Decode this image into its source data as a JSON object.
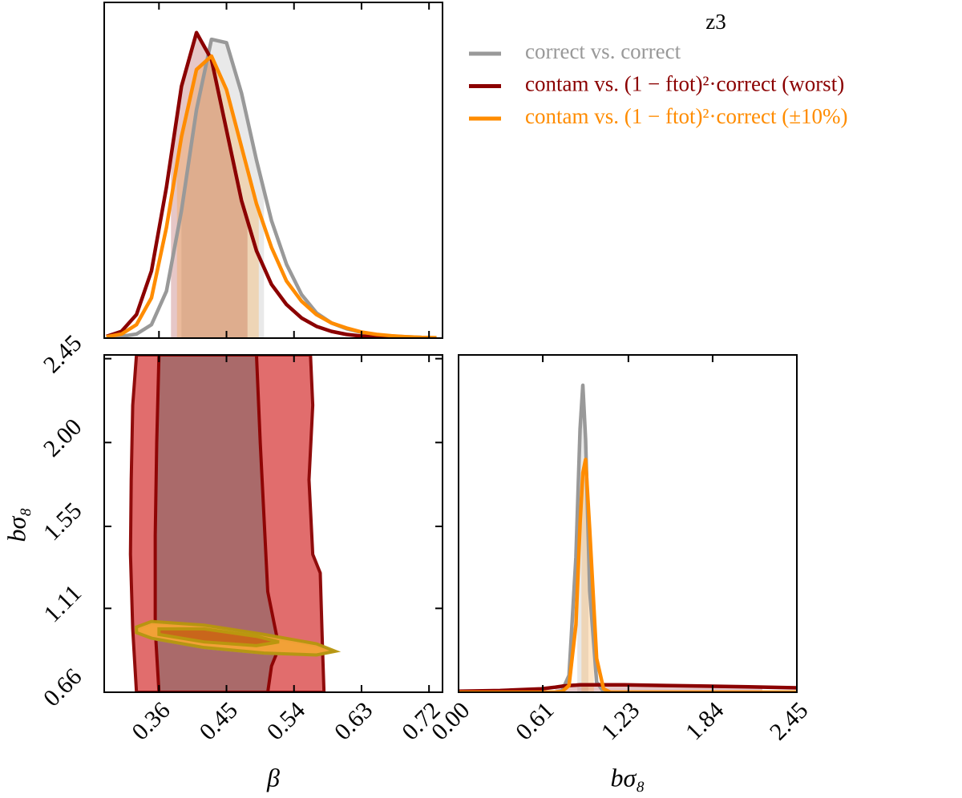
{
  "chart_data": [
    {
      "type": "line",
      "legend_title": "z3",
      "x": [
        0.29,
        0.31,
        0.33,
        0.35,
        0.37,
        0.39,
        0.41,
        0.43,
        0.45,
        0.47,
        0.49,
        0.51,
        0.53,
        0.55,
        0.57,
        0.59,
        0.61,
        0.63,
        0.65,
        0.67,
        0.69,
        0.71,
        0.73
      ],
      "series": [
        {
          "name": "correct vs. correct",
          "color": "#999999",
          "interval": [
            0.39,
            0.5
          ],
          "values": [
            0.003,
            0.005,
            0.012,
            0.04,
            0.14,
            0.38,
            0.68,
            0.89,
            0.88,
            0.73,
            0.53,
            0.35,
            0.22,
            0.13,
            0.075,
            0.045,
            0.028,
            0.017,
            0.01,
            0.006,
            0.004,
            0.002,
            0.001
          ]
        },
        {
          "name": "contam vs. (1 − ftot)²·correct (worst)",
          "color": "#8b0000",
          "interval": [
            0.376,
            0.478
          ],
          "values": [
            0.005,
            0.02,
            0.07,
            0.2,
            0.45,
            0.75,
            0.91,
            0.83,
            0.62,
            0.41,
            0.26,
            0.16,
            0.1,
            0.06,
            0.035,
            0.02,
            0.011,
            0.006,
            0.003,
            0.002,
            0.001,
            0,
            0
          ]
        },
        {
          "name": "contam vs. (1 − ftot)²·correct (±10%)",
          "color": "#ff8c00",
          "interval": [
            0.384,
            0.493
          ],
          "values": [
            0.004,
            0.012,
            0.04,
            0.12,
            0.33,
            0.6,
            0.8,
            0.84,
            0.74,
            0.57,
            0.4,
            0.27,
            0.17,
            0.11,
            0.07,
            0.045,
            0.03,
            0.018,
            0.011,
            0.007,
            0.004,
            0.002,
            0.001
          ]
        }
      ],
      "xlim": [
        0.287,
        0.738
      ],
      "xticks": [
        0.36,
        0.45,
        0.54,
        0.63,
        0.72
      ],
      "ylim": [
        0,
        1
      ]
    },
    {
      "type": "contour",
      "xlabel": "β",
      "ylabel": "bσ₈",
      "xlim": [
        0.287,
        0.738
      ],
      "xticks": [
        0.36,
        0.45,
        0.54,
        0.63,
        0.72
      ],
      "ylim": [
        0.66,
        2.47
      ],
      "yticks": [
        0.66,
        1.11,
        1.55,
        {
          "value": 2.0,
          "label": "2.00"
        },
        2.45
      ],
      "series": [
        {
          "color": "#8b0000",
          "fill_colors": [
            "#e06666",
            "#a86a6a"
          ],
          "contours": [
            {
              "x": [
                0.33,
                0.325,
                0.323,
                0.322,
                0.325,
                0.33,
                0.58,
                0.578,
                0.575,
                0.565,
                0.56,
                0.565,
                0.562
              ],
              "y": [
                2.47,
                2.2,
                1.8,
                1.4,
                1.0,
                0.66,
                0.66,
                0.9,
                1.3,
                1.4,
                1.8,
                2.2,
                2.47
              ]
            },
            {
              "x": [
                0.36,
                0.357,
                0.355,
                0.355,
                0.36,
                0.505,
                0.51,
                0.52,
                0.505,
                0.5,
                0.495,
                0.49
              ],
              "y": [
                2.47,
                2.0,
                1.5,
                1.0,
                0.66,
                0.66,
                0.8,
                0.9,
                1.2,
                1.6,
                2.0,
                2.47
              ]
            }
          ]
        },
        {
          "color": "#999999",
          "fill_colors": [
            "#c8c8c8",
            "#8c8c8c"
          ],
          "contours": [
            {
              "x": [
                0.332,
                0.35,
                0.42,
                0.5,
                0.57,
                0.59,
                0.57,
                0.5,
                0.42,
                0.35,
                0.332
              ],
              "y": [
                1.0,
                1.03,
                1.01,
                0.96,
                0.91,
                0.88,
                0.86,
                0.87,
                0.9,
                0.95,
                0.98
              ]
            },
            {
              "x": [
                0.365,
                0.42,
                0.49,
                0.515,
                0.49,
                0.42,
                0.365
              ],
              "y": [
                0.995,
                0.995,
                0.955,
                0.93,
                0.915,
                0.935,
                0.97
              ]
            }
          ]
        },
        {
          "color": "#b8960c",
          "fill_colors": [
            "#f5a030",
            "#c8641a"
          ],
          "contours": [
            {
              "x": [
                0.33,
                0.35,
                0.42,
                0.5,
                0.57,
                0.595,
                0.57,
                0.5,
                0.42,
                0.35,
                0.33
              ],
              "y": [
                1.01,
                1.04,
                1.02,
                0.97,
                0.92,
                0.88,
                0.86,
                0.87,
                0.9,
                0.95,
                0.98
              ]
            },
            {
              "x": [
                0.36,
                0.42,
                0.49,
                0.52,
                0.49,
                0.42,
                0.36
              ],
              "y": [
                1.0,
                1.0,
                0.96,
                0.93,
                0.91,
                0.93,
                0.97
              ]
            }
          ]
        }
      ]
    },
    {
      "type": "line",
      "xlabel": "bσ₈",
      "x": [
        0,
        0.3,
        0.6,
        0.7,
        0.75,
        0.8,
        0.85,
        0.88,
        0.9,
        0.92,
        0.95,
        1.0,
        1.05,
        1.1,
        1.2,
        1.5,
        1.8,
        2.1,
        2.45
      ],
      "series": [
        {
          "color": "#999999",
          "interval": [
            0.86,
            0.94
          ],
          "values": [
            0,
            0,
            0,
            0,
            0.005,
            0.05,
            0.4,
            0.78,
            0.91,
            0.75,
            0.3,
            0.03,
            0.002,
            0,
            0,
            0,
            0,
            0,
            0
          ]
        },
        {
          "color": "#8b0000",
          "interval": [
            0.7,
            2.2
          ],
          "values": [
            0.003,
            0.005,
            0.01,
            0.015,
            0.018,
            0.02,
            0.021,
            0.022,
            0.022,
            0.022,
            0.022,
            0.022,
            0.022,
            0.022,
            0.022,
            0.02,
            0.018,
            0.016,
            0.013
          ]
        },
        {
          "color": "#ff8c00",
          "interval": [
            0.89,
            0.98
          ],
          "values": [
            0,
            0,
            0,
            0,
            0.002,
            0.02,
            0.2,
            0.5,
            0.65,
            0.69,
            0.48,
            0.1,
            0.01,
            0,
            0,
            0,
            0,
            0,
            0
          ]
        }
      ],
      "xlim": [
        0,
        2.45
      ],
      "xticks": [
        {
          "value": 0,
          "label": "0.00"
        },
        0.61,
        1.23,
        1.84,
        2.45
      ],
      "ylim": [
        0,
        1
      ]
    }
  ]
}
